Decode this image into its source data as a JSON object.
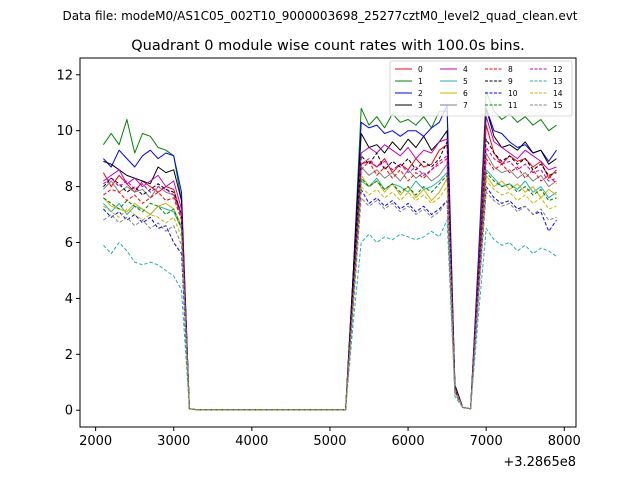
{
  "suptitle": "Data file: modeM0/AS1C05_002T10_9000003698_25277cztM0_level2_quad_clean.evt",
  "chart_data": {
    "type": "line",
    "title": "Quadrant 0 module wise count rates with 100.0s bins.",
    "xlabel": "",
    "ylabel": "",
    "x_offset_label": "+3.2865e8",
    "xlim": [
      1800,
      8150
    ],
    "ylim": [
      -0.6,
      12.6
    ],
    "x_ticks": [
      2000,
      3000,
      4000,
      5000,
      6000,
      7000,
      8000
    ],
    "x_tick_labels": [
      "2000",
      "3000",
      "4000",
      "5000",
      "6000",
      "7000",
      "8000"
    ],
    "y_ticks": [
      0,
      2,
      4,
      6,
      8,
      10,
      12
    ],
    "y_tick_labels": [
      "0",
      "2",
      "4",
      "6",
      "8",
      "10",
      "12"
    ],
    "legend_position": "top-right",
    "x": [
      2100,
      2200,
      2300,
      2400,
      2500,
      2600,
      2700,
      2800,
      2900,
      3000,
      3100,
      3200,
      3300,
      3400,
      3500,
      3600,
      3700,
      3800,
      3900,
      4000,
      4100,
      4200,
      4300,
      4400,
      4500,
      4600,
      4700,
      4800,
      4900,
      5000,
      5100,
      5200,
      5300,
      5400,
      5500,
      5600,
      5700,
      5800,
      5900,
      6000,
      6100,
      6200,
      6300,
      6400,
      6500,
      6600,
      6700,
      6800,
      6900,
      7000,
      7100,
      7200,
      7300,
      7400,
      7500,
      7600,
      7700,
      7800,
      7900
    ],
    "series": [
      {
        "name": "0",
        "color": "#ff0000",
        "dash": "solid",
        "values": [
          8.5,
          8.0,
          8.4,
          8.1,
          7.8,
          8.2,
          8.0,
          7.8,
          8.0,
          7.9,
          7.0,
          0.05,
          0.02,
          0.02,
          0.02,
          0.02,
          0.02,
          0.02,
          0.02,
          0.02,
          0.02,
          0.02,
          0.02,
          0.02,
          0.02,
          0.02,
          0.02,
          0.02,
          0.02,
          0.02,
          0.02,
          0.02,
          4.0,
          8.8,
          8.9,
          8.7,
          9.0,
          8.5,
          8.8,
          8.6,
          9.0,
          8.7,
          8.8,
          9.3,
          9.5,
          0.8,
          0.1,
          0.05,
          5.0,
          10.2,
          9.2,
          8.8,
          9.1,
          8.9,
          9.0,
          8.7,
          8.9,
          8.3,
          8.6
        ]
      },
      {
        "name": "1",
        "color": "#008000",
        "dash": "solid",
        "values": [
          9.5,
          9.9,
          9.5,
          10.4,
          9.2,
          9.9,
          9.8,
          9.4,
          9.3,
          9.1,
          7.5,
          0.05,
          0.02,
          0.02,
          0.02,
          0.02,
          0.02,
          0.02,
          0.02,
          0.02,
          0.02,
          0.02,
          0.02,
          0.02,
          0.02,
          0.02,
          0.02,
          0.02,
          0.02,
          0.02,
          0.02,
          0.02,
          5.0,
          10.8,
          10.2,
          10.5,
          10.1,
          10.6,
          10.3,
          10.4,
          10.2,
          10.5,
          10.1,
          10.7,
          10.7,
          0.9,
          0.1,
          0.05,
          5.5,
          11.4,
          10.7,
          10.4,
          10.6,
          10.3,
          10.5,
          10.2,
          10.4,
          10.0,
          10.2
        ]
      },
      {
        "name": "2",
        "color": "#0000ff",
        "dash": "solid",
        "values": [
          9.0,
          8.7,
          9.3,
          9.0,
          8.7,
          9.1,
          9.3,
          9.0,
          9.2,
          9.1,
          7.8,
          0.05,
          0.02,
          0.02,
          0.02,
          0.02,
          0.02,
          0.02,
          0.02,
          0.02,
          0.02,
          0.02,
          0.02,
          0.02,
          0.02,
          0.02,
          0.02,
          0.02,
          0.02,
          0.02,
          0.02,
          0.02,
          5.0,
          10.3,
          10.1,
          10.2,
          9.9,
          10.0,
          9.8,
          10.0,
          10.0,
          9.8,
          10.1,
          10.3,
          10.9,
          0.9,
          0.1,
          0.05,
          5.3,
          10.8,
          10.0,
          9.9,
          9.6,
          9.4,
          9.5,
          9.2,
          9.3,
          8.9,
          9.3
        ]
      },
      {
        "name": "3",
        "color": "#000000",
        "dash": "solid",
        "values": [
          8.9,
          8.8,
          8.6,
          8.4,
          8.3,
          8.2,
          8.1,
          8.7,
          8.5,
          8.6,
          7.5,
          0.05,
          0.02,
          0.02,
          0.02,
          0.02,
          0.02,
          0.02,
          0.02,
          0.02,
          0.02,
          0.02,
          0.02,
          0.02,
          0.02,
          0.02,
          0.02,
          0.02,
          0.02,
          0.02,
          0.02,
          0.02,
          5.0,
          9.9,
          9.4,
          9.5,
          9.2,
          9.6,
          9.3,
          9.7,
          9.4,
          9.8,
          9.3,
          9.6,
          10.0,
          0.9,
          0.1,
          0.05,
          5.0,
          10.8,
          9.8,
          9.4,
          9.5,
          9.3,
          9.6,
          9.2,
          9.3,
          8.8,
          9.0
        ]
      },
      {
        "name": "4",
        "color": "#c000c0",
        "dash": "solid",
        "values": [
          8.2,
          8.4,
          8.6,
          8.1,
          8.3,
          8.0,
          8.2,
          8.4,
          8.0,
          8.2,
          7.2,
          0.05,
          0.02,
          0.02,
          0.02,
          0.02,
          0.02,
          0.02,
          0.02,
          0.02,
          0.02,
          0.02,
          0.02,
          0.02,
          0.02,
          0.02,
          0.02,
          0.02,
          0.02,
          0.02,
          0.02,
          0.02,
          4.5,
          9.2,
          9.4,
          9.2,
          9.5,
          9.3,
          9.1,
          9.4,
          9.0,
          9.3,
          9.2,
          9.6,
          9.7,
          0.8,
          0.1,
          0.05,
          5.0,
          10.5,
          9.6,
          9.4,
          9.2,
          9.0,
          9.3,
          9.1,
          8.9,
          8.6,
          8.7
        ]
      },
      {
        "name": "5",
        "color": "#20b2aa",
        "dash": "solid",
        "values": [
          7.4,
          7.1,
          7.4,
          7.0,
          7.3,
          7.2,
          7.0,
          7.3,
          7.2,
          7.1,
          6.5,
          0.05,
          0.02,
          0.02,
          0.02,
          0.02,
          0.02,
          0.02,
          0.02,
          0.02,
          0.02,
          0.02,
          0.02,
          0.02,
          0.02,
          0.02,
          0.02,
          0.02,
          0.02,
          0.02,
          0.02,
          0.02,
          4.0,
          8.2,
          8.0,
          8.3,
          7.9,
          8.1,
          8.0,
          7.8,
          8.2,
          7.9,
          8.0,
          8.2,
          8.5,
          0.7,
          0.1,
          0.05,
          4.3,
          8.6,
          8.3,
          8.0,
          8.1,
          7.9,
          8.2,
          7.8,
          8.0,
          7.6,
          7.8
        ]
      },
      {
        "name": "6",
        "color": "#c8b400",
        "dash": "solid",
        "values": [
          7.6,
          7.3,
          7.2,
          7.1,
          7.4,
          7.2,
          7.0,
          7.3,
          7.4,
          7.2,
          6.6,
          0.05,
          0.02,
          0.02,
          0.02,
          0.02,
          0.02,
          0.02,
          0.02,
          0.02,
          0.02,
          0.02,
          0.02,
          0.02,
          0.02,
          0.02,
          0.02,
          0.02,
          0.02,
          0.02,
          0.02,
          0.02,
          4.0,
          8.4,
          8.0,
          8.2,
          7.8,
          8.1,
          7.7,
          8.0,
          7.6,
          7.9,
          7.5,
          7.8,
          8.3,
          0.7,
          0.1,
          0.05,
          4.2,
          8.4,
          8.0,
          8.2,
          7.9,
          8.1,
          7.8,
          8.0,
          7.6,
          7.9,
          7.7
        ]
      },
      {
        "name": "7",
        "color": "#808080",
        "dash": "solid",
        "values": [
          7.9,
          8.2,
          7.8,
          8.0,
          7.8,
          7.9,
          7.6,
          8.0,
          7.8,
          7.7,
          6.9,
          0.05,
          0.02,
          0.02,
          0.02,
          0.02,
          0.02,
          0.02,
          0.02,
          0.02,
          0.02,
          0.02,
          0.02,
          0.02,
          0.02,
          0.02,
          0.02,
          0.02,
          0.02,
          0.02,
          0.02,
          0.02,
          4.3,
          8.7,
          8.4,
          8.6,
          8.3,
          8.5,
          8.2,
          8.6,
          8.3,
          8.5,
          8.2,
          8.4,
          8.8,
          0.8,
          0.1,
          0.05,
          4.6,
          9.2,
          8.7,
          8.5,
          8.6,
          8.3,
          8.5,
          8.2,
          8.4,
          8.0,
          8.2
        ]
      },
      {
        "name": "8",
        "color": "#ff0000",
        "dash": "dashed",
        "values": [
          7.7,
          7.9,
          7.8,
          7.5,
          7.7,
          7.4,
          7.6,
          7.8,
          7.5,
          7.6,
          6.8,
          0.05,
          0.02,
          0.02,
          0.02,
          0.02,
          0.02,
          0.02,
          0.02,
          0.02,
          0.02,
          0.02,
          0.02,
          0.02,
          0.02,
          0.02,
          0.02,
          0.02,
          0.02,
          0.02,
          0.02,
          0.02,
          4.2,
          8.6,
          8.9,
          8.4,
          8.7,
          8.3,
          8.6,
          8.2,
          8.5,
          8.3,
          8.6,
          8.8,
          9.0,
          0.8,
          0.1,
          0.05,
          4.5,
          9.0,
          8.6,
          8.8,
          8.5,
          8.7,
          8.3,
          8.6,
          8.2,
          8.4,
          8.1
        ]
      },
      {
        "name": "9",
        "color": "#000000",
        "dash": "dashed",
        "values": [
          8.0,
          8.3,
          8.1,
          7.8,
          8.0,
          7.7,
          7.9,
          8.1,
          7.9,
          7.8,
          7.0,
          0.05,
          0.02,
          0.02,
          0.02,
          0.02,
          0.02,
          0.02,
          0.02,
          0.02,
          0.02,
          0.02,
          0.02,
          0.02,
          0.02,
          0.02,
          0.02,
          0.02,
          0.02,
          0.02,
          0.02,
          0.02,
          4.6,
          9.1,
          8.8,
          9.2,
          8.6,
          8.9,
          8.7,
          9.0,
          8.6,
          8.9,
          8.7,
          9.0,
          9.6,
          0.8,
          0.1,
          0.05,
          4.8,
          9.7,
          9.2,
          8.9,
          9.1,
          8.8,
          9.0,
          8.6,
          8.8,
          8.4,
          8.5
        ]
      },
      {
        "name": "10",
        "color": "#0000ff",
        "dash": "dashed",
        "values": [
          7.2,
          6.9,
          7.1,
          6.8,
          7.0,
          6.7,
          6.9,
          6.5,
          6.6,
          6.0,
          5.6,
          0.05,
          0.02,
          0.02,
          0.02,
          0.02,
          0.02,
          0.02,
          0.02,
          0.02,
          0.02,
          0.02,
          0.02,
          0.02,
          0.02,
          0.02,
          0.02,
          0.02,
          0.02,
          0.02,
          0.02,
          0.02,
          4.0,
          7.9,
          7.4,
          7.6,
          7.3,
          7.5,
          7.2,
          7.4,
          7.1,
          7.3,
          7.0,
          7.2,
          7.5,
          0.7,
          0.1,
          0.05,
          4.2,
          8.0,
          7.6,
          7.4,
          7.5,
          7.2,
          7.3,
          7.0,
          7.1,
          6.4,
          6.8
        ]
      },
      {
        "name": "11",
        "color": "#008000",
        "dash": "dashed",
        "values": [
          7.6,
          7.4,
          7.2,
          7.5,
          7.3,
          7.1,
          7.4,
          7.3,
          7.0,
          7.2,
          6.5,
          0.05,
          0.02,
          0.02,
          0.02,
          0.02,
          0.02,
          0.02,
          0.02,
          0.02,
          0.02,
          0.02,
          0.02,
          0.02,
          0.02,
          0.02,
          0.02,
          0.02,
          0.02,
          0.02,
          0.02,
          0.02,
          4.1,
          8.3,
          8.0,
          8.2,
          7.9,
          8.1,
          7.8,
          8.0,
          7.7,
          8.0,
          7.8,
          8.1,
          8.4,
          0.7,
          0.1,
          0.05,
          4.4,
          8.5,
          8.2,
          8.0,
          8.1,
          7.8,
          8.0,
          7.7,
          7.9,
          7.5,
          7.6
        ]
      },
      {
        "name": "12",
        "color": "#c000c0",
        "dash": "dashed",
        "values": [
          8.1,
          8.3,
          8.0,
          8.2,
          7.9,
          8.1,
          7.8,
          8.0,
          7.9,
          7.7,
          7.0,
          0.05,
          0.02,
          0.02,
          0.02,
          0.02,
          0.02,
          0.02,
          0.02,
          0.02,
          0.02,
          0.02,
          0.02,
          0.02,
          0.02,
          0.02,
          0.02,
          0.02,
          0.02,
          0.02,
          0.02,
          0.02,
          4.4,
          8.8,
          9.0,
          8.7,
          8.9,
          8.6,
          8.8,
          8.5,
          8.7,
          8.4,
          8.6,
          8.9,
          9.1,
          0.8,
          0.1,
          0.05,
          4.6,
          9.4,
          9.0,
          8.8,
          8.9,
          8.6,
          8.8,
          8.5,
          8.6,
          8.2,
          8.3
        ]
      },
      {
        "name": "13",
        "color": "#20b2aa",
        "dash": "dashed",
        "values": [
          5.9,
          5.6,
          6.0,
          5.7,
          5.3,
          5.2,
          5.3,
          5.2,
          5.0,
          4.8,
          4.3,
          0.05,
          0.02,
          0.02,
          0.02,
          0.02,
          0.02,
          0.02,
          0.02,
          0.02,
          0.02,
          0.02,
          0.02,
          0.02,
          0.02,
          0.02,
          0.02,
          0.02,
          0.02,
          0.02,
          0.02,
          0.02,
          3.2,
          6.0,
          6.3,
          6.0,
          6.2,
          6.1,
          6.3,
          6.2,
          6.1,
          6.2,
          6.4,
          6.2,
          6.8,
          0.5,
          0.1,
          0.05,
          3.4,
          6.5,
          6.1,
          5.9,
          6.0,
          5.7,
          5.9,
          5.6,
          5.8,
          5.7,
          5.5
        ]
      },
      {
        "name": "14",
        "color": "#c8b400",
        "dash": "dashed",
        "values": [
          7.3,
          7.1,
          6.9,
          7.2,
          7.0,
          6.8,
          7.0,
          6.9,
          6.7,
          6.9,
          6.2,
          0.05,
          0.02,
          0.02,
          0.02,
          0.02,
          0.02,
          0.02,
          0.02,
          0.02,
          0.02,
          0.02,
          0.02,
          0.02,
          0.02,
          0.02,
          0.02,
          0.02,
          0.02,
          0.02,
          0.02,
          0.02,
          3.9,
          8.0,
          7.7,
          7.9,
          7.6,
          7.8,
          7.5,
          7.8,
          7.5,
          7.7,
          7.4,
          7.6,
          8.0,
          0.7,
          0.1,
          0.05,
          4.1,
          8.2,
          7.9,
          7.7,
          7.8,
          7.5,
          7.7,
          7.4,
          7.6,
          7.2,
          7.3
        ]
      },
      {
        "name": "15",
        "color": "#808080",
        "dash": "dashed",
        "values": [
          6.8,
          7.0,
          6.7,
          6.9,
          6.6,
          6.8,
          6.5,
          6.7,
          6.4,
          6.6,
          5.9,
          0.05,
          0.02,
          0.02,
          0.02,
          0.02,
          0.02,
          0.02,
          0.02,
          0.02,
          0.02,
          0.02,
          0.02,
          0.02,
          0.02,
          0.02,
          0.02,
          0.02,
          0.02,
          0.02,
          0.02,
          0.02,
          3.7,
          7.6,
          7.3,
          7.5,
          7.2,
          7.4,
          7.1,
          7.3,
          7.0,
          7.2,
          6.9,
          7.1,
          7.5,
          0.6,
          0.1,
          0.05,
          3.9,
          7.8,
          7.5,
          7.3,
          7.4,
          7.1,
          7.3,
          7.0,
          7.2,
          6.8,
          6.9
        ]
      }
    ]
  }
}
